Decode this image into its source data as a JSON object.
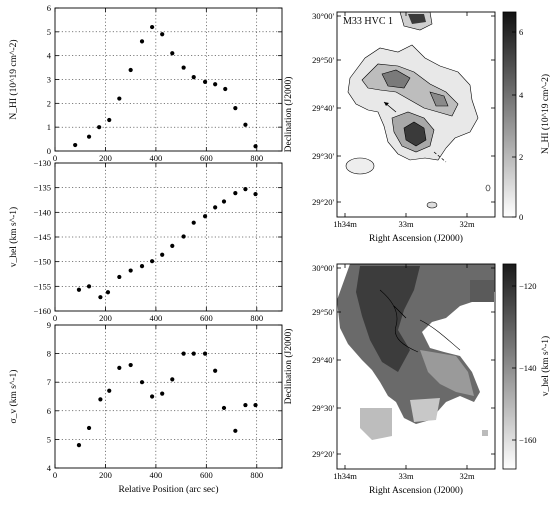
{
  "chart_data": [
    {
      "type": "scatter",
      "xlabel": "",
      "ylabel": "N_HI (10^19 cm^-2)",
      "xlim": [
        0,
        900
      ],
      "ylim": [
        0,
        6
      ],
      "xticks": [
        "0",
        "200",
        "400",
        "600",
        "800"
      ],
      "yticks": [
        "0",
        "1",
        "2",
        "3",
        "4",
        "5",
        "6"
      ],
      "grid": true,
      "x": [
        80,
        135,
        175,
        215,
        255,
        300,
        345,
        385,
        425,
        465,
        510,
        550,
        595,
        635,
        675,
        715,
        755,
        795
      ],
      "y": [
        0.25,
        0.6,
        1.0,
        1.3,
        2.2,
        3.4,
        4.6,
        5.2,
        4.9,
        4.1,
        3.5,
        3.1,
        2.9,
        2.8,
        2.6,
        1.8,
        1.1,
        0.2
      ]
    },
    {
      "type": "scatter",
      "xlabel": "",
      "ylabel": "v_hel (km s^-1)",
      "xlim": [
        0,
        900
      ],
      "ylim": [
        -160,
        -130
      ],
      "xticks": [
        "0",
        "200",
        "400",
        "600",
        "800"
      ],
      "yticks": [
        "-160",
        "-155",
        "-150",
        "-145",
        "-140",
        "-135",
        "-130"
      ],
      "grid": true,
      "x": [
        95,
        135,
        180,
        210,
        255,
        300,
        345,
        385,
        425,
        465,
        510,
        550,
        595,
        635,
        670,
        715,
        755,
        795
      ],
      "y": [
        -155.7,
        -155.0,
        -157.2,
        -156.2,
        -153.1,
        -151.8,
        -150.9,
        -149.9,
        -148.6,
        -146.8,
        -144.9,
        -142.1,
        -140.8,
        -139.0,
        -137.8,
        -136.1,
        -135.3,
        -136.3
      ]
    },
    {
      "type": "scatter",
      "xlabel": "Relative Position (arc sec)",
      "ylabel": "σ_v (km s^-1)",
      "xlim": [
        0,
        900
      ],
      "ylim": [
        4,
        9
      ],
      "xticks": [
        "0",
        "200",
        "400",
        "600",
        "800"
      ],
      "yticks": [
        "4",
        "5",
        "6",
        "7",
        "8",
        "9"
      ],
      "grid": true,
      "x": [
        95,
        135,
        180,
        215,
        255,
        300,
        345,
        385,
        425,
        465,
        510,
        550,
        595,
        635,
        670,
        715,
        755,
        795
      ],
      "y": [
        4.8,
        5.4,
        6.4,
        6.7,
        7.5,
        7.6,
        7.0,
        6.5,
        6.6,
        7.1,
        8.0,
        8.0,
        8.0,
        7.4,
        6.1,
        5.3,
        6.2,
        6.2
      ]
    }
  ],
  "maps": [
    {
      "title": "M33 HVC 1",
      "xlabel": "Right Ascension (J2000)",
      "ylabel": "Declination (J2000)",
      "xticks": [
        "1h34m",
        "33m",
        "32m"
      ],
      "yticks": [
        "30°00'",
        "29°50'",
        "29°40'",
        "29°30'",
        "29°20'"
      ],
      "colorbar": {
        "label": "N_HI (10^19 cm^-2)",
        "ticks": [
          "6",
          "4",
          "2",
          "0"
        ]
      }
    },
    {
      "title": "",
      "xlabel": "Right Ascension (J2000)",
      "ylabel": "Declination (J2000)",
      "xticks": [
        "1h34m",
        "33m",
        "32m"
      ],
      "yticks": [
        "30°00'",
        "29°50'",
        "29°40'",
        "29°30'",
        "29°20'"
      ],
      "colorbar": {
        "label": "v_hel (km s^-1)",
        "ticks": [
          "-120",
          "-140",
          "-160"
        ]
      }
    }
  ]
}
